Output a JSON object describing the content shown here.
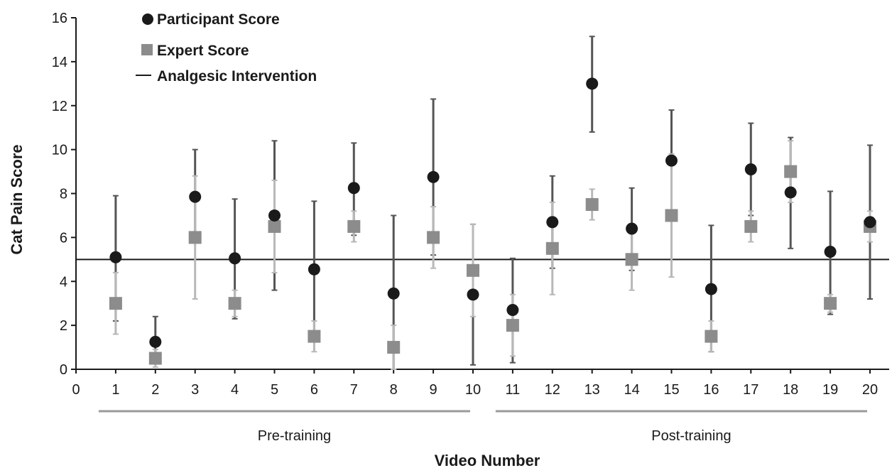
{
  "chart_data": {
    "type": "scatter",
    "xlabel": "Video Number",
    "ylabel": "Cat Pain Score",
    "xlim": [
      0,
      20.5
    ],
    "ylim": [
      0,
      16
    ],
    "x_ticks": [
      "0",
      "1",
      "2",
      "3",
      "4",
      "5",
      "6",
      "7",
      "8",
      "9",
      "10",
      "11",
      "12",
      "13",
      "14",
      "15",
      "16",
      "17",
      "18",
      "19",
      "20"
    ],
    "y_ticks": [
      "0",
      "2",
      "4",
      "6",
      "8",
      "10",
      "12",
      "14",
      "16"
    ],
    "legend": {
      "placement": "top-left",
      "entries": [
        "Participant Score",
        "Expert Score",
        "Analgesic Intervention"
      ]
    },
    "reference_line": {
      "name": "Analgesic Intervention",
      "y": 5,
      "color": "#1a1a1a"
    },
    "groups": [
      {
        "label": "Pre-training",
        "x_from": 1,
        "x_to": 10
      },
      {
        "label": "Post-training",
        "x_from": 11,
        "x_to": 20
      }
    ],
    "series": [
      {
        "name": "Participant Score",
        "marker": "circle",
        "color": "#1a1a1a",
        "errorbar_color": "#555555",
        "x": [
          1,
          2,
          3,
          4,
          5,
          6,
          7,
          8,
          9,
          10,
          11,
          12,
          13,
          14,
          15,
          16,
          17,
          18,
          19,
          20
        ],
        "values": [
          5.1,
          1.25,
          7.85,
          5.05,
          7.0,
          4.55,
          8.25,
          3.45,
          8.75,
          3.4,
          2.7,
          6.7,
          13.0,
          6.4,
          9.5,
          3.65,
          9.1,
          8.05,
          5.35,
          6.7
        ],
        "error_low": [
          2.2,
          0.3,
          5.8,
          2.3,
          3.6,
          1.5,
          6.1,
          0.0,
          5.2,
          0.2,
          0.3,
          4.6,
          10.8,
          4.5,
          7.1,
          0.8,
          7.0,
          5.5,
          2.5,
          3.2
        ],
        "error_high": [
          7.9,
          2.4,
          10.0,
          7.75,
          10.4,
          7.65,
          10.3,
          7.0,
          12.3,
          6.6,
          5.05,
          8.8,
          15.15,
          8.25,
          11.8,
          6.55,
          11.2,
          10.55,
          8.1,
          10.2
        ]
      },
      {
        "name": "Expert Score",
        "marker": "square",
        "color": "#8c8c8c",
        "errorbar_color": "#b8b8b8",
        "x": [
          1,
          2,
          3,
          4,
          5,
          6,
          7,
          8,
          9,
          10,
          11,
          12,
          13,
          14,
          15,
          16,
          17,
          18,
          19,
          20
        ],
        "values": [
          3.0,
          0.5,
          6.0,
          3.0,
          6.5,
          1.5,
          6.5,
          1.0,
          6.0,
          4.5,
          2.0,
          5.5,
          7.5,
          5.0,
          7.0,
          1.5,
          6.5,
          9.0,
          3.0,
          6.5
        ],
        "error_low": [
          1.6,
          0.1,
          3.2,
          2.4,
          4.4,
          0.8,
          5.8,
          0.0,
          4.6,
          2.4,
          0.6,
          3.4,
          6.8,
          3.6,
          4.2,
          0.8,
          5.8,
          7.6,
          2.6,
          5.8
        ],
        "error_high": [
          4.4,
          0.9,
          8.8,
          3.6,
          8.6,
          2.2,
          7.2,
          2.0,
          7.4,
          6.6,
          3.4,
          7.6,
          8.2,
          6.4,
          9.8,
          2.2,
          7.2,
          10.4,
          3.4,
          7.2
        ]
      }
    ]
  }
}
